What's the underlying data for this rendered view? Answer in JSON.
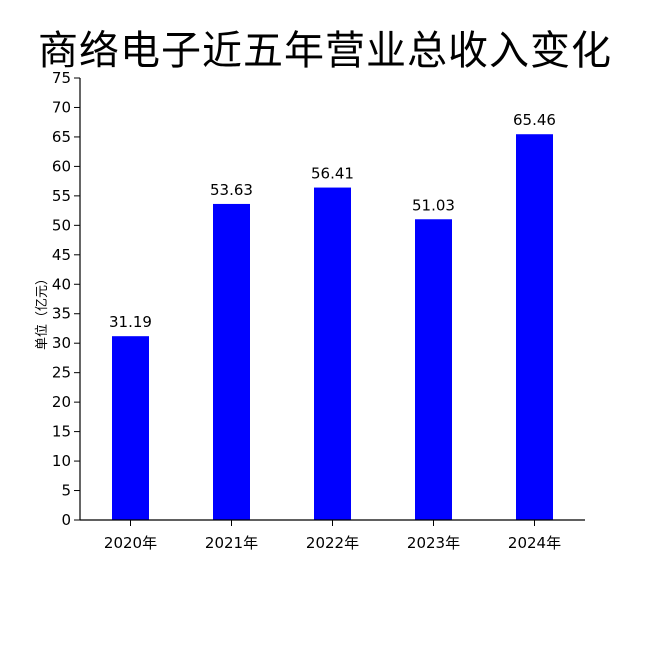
{
  "chart_data": {
    "type": "bar",
    "title": "商络电子近五年营业总收入变化",
    "ylabel": "单位（亿元）",
    "xlabel": "",
    "categories": [
      "2020年",
      "2021年",
      "2022年",
      "2023年",
      "2024年"
    ],
    "values": [
      31.19,
      53.63,
      56.41,
      51.03,
      65.46
    ],
    "data_labels": [
      "31.19",
      "53.63",
      "56.41",
      "51.03",
      "65.46"
    ],
    "ylim": [
      0,
      75
    ],
    "yticks": [
      0,
      5,
      10,
      15,
      20,
      25,
      30,
      35,
      40,
      45,
      50,
      55,
      60,
      65,
      70,
      75
    ],
    "bar_color": "#0000ff",
    "grid": false,
    "legend": "none"
  }
}
